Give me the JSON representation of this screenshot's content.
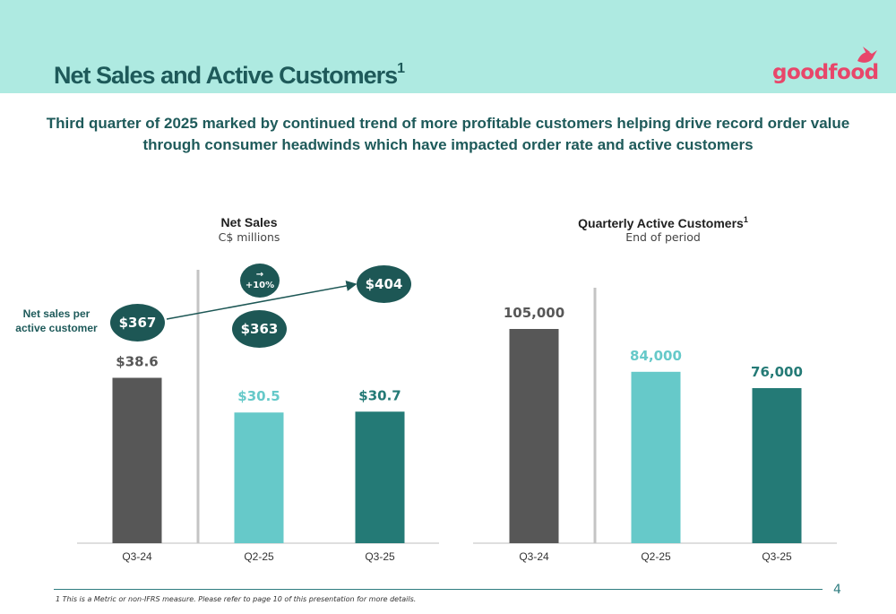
{
  "header": {
    "title": "Net Sales and Active Customers",
    "title_sup": "1",
    "logo_text": "goodfood",
    "colors": {
      "band": "#aeeae1",
      "title": "#1e5a5a",
      "logo": "#e8466a"
    }
  },
  "subtitle": "Third quarter of 2025 marked by continued trend of more profitable customers helping drive record order value through consumer headwinds which have impacted order rate and active customers",
  "net_sales_per_customer": {
    "label": "Net sales per active customer",
    "values": [
      "$367",
      "$363",
      "$404"
    ],
    "growth_icon": "arrow-right-icon",
    "growth": "+10%"
  },
  "chart_data": [
    {
      "type": "bar",
      "title": "Net Sales",
      "subtitle": "C$ millions",
      "categories": [
        "Q3-24",
        "Q2-25",
        "Q3-25"
      ],
      "values": [
        38.6,
        30.5,
        30.7
      ],
      "labels": [
        "$38.6",
        "$30.5",
        "$30.7"
      ],
      "colors": [
        "#575757",
        "#66c9c9",
        "#247a76"
      ],
      "ylim": [
        0,
        50
      ],
      "grid": false
    },
    {
      "type": "bar",
      "title": "Quarterly Active Customers",
      "title_sup": "1",
      "subtitle": "End of period",
      "categories": [
        "Q3-24",
        "Q2-25",
        "Q3-25"
      ],
      "values": [
        105000,
        84000,
        76000
      ],
      "labels": [
        "105,000",
        "84,000",
        "76,000"
      ],
      "colors": [
        "#575757",
        "#66c9c9",
        "#247a76"
      ],
      "ylim": [
        0,
        105000
      ],
      "grid": false
    }
  ],
  "footer": {
    "footnote": "1  This is a Metric or non-IFRS measure. Please refer to page 10 of this presentation for more details.",
    "page_number": "4"
  }
}
